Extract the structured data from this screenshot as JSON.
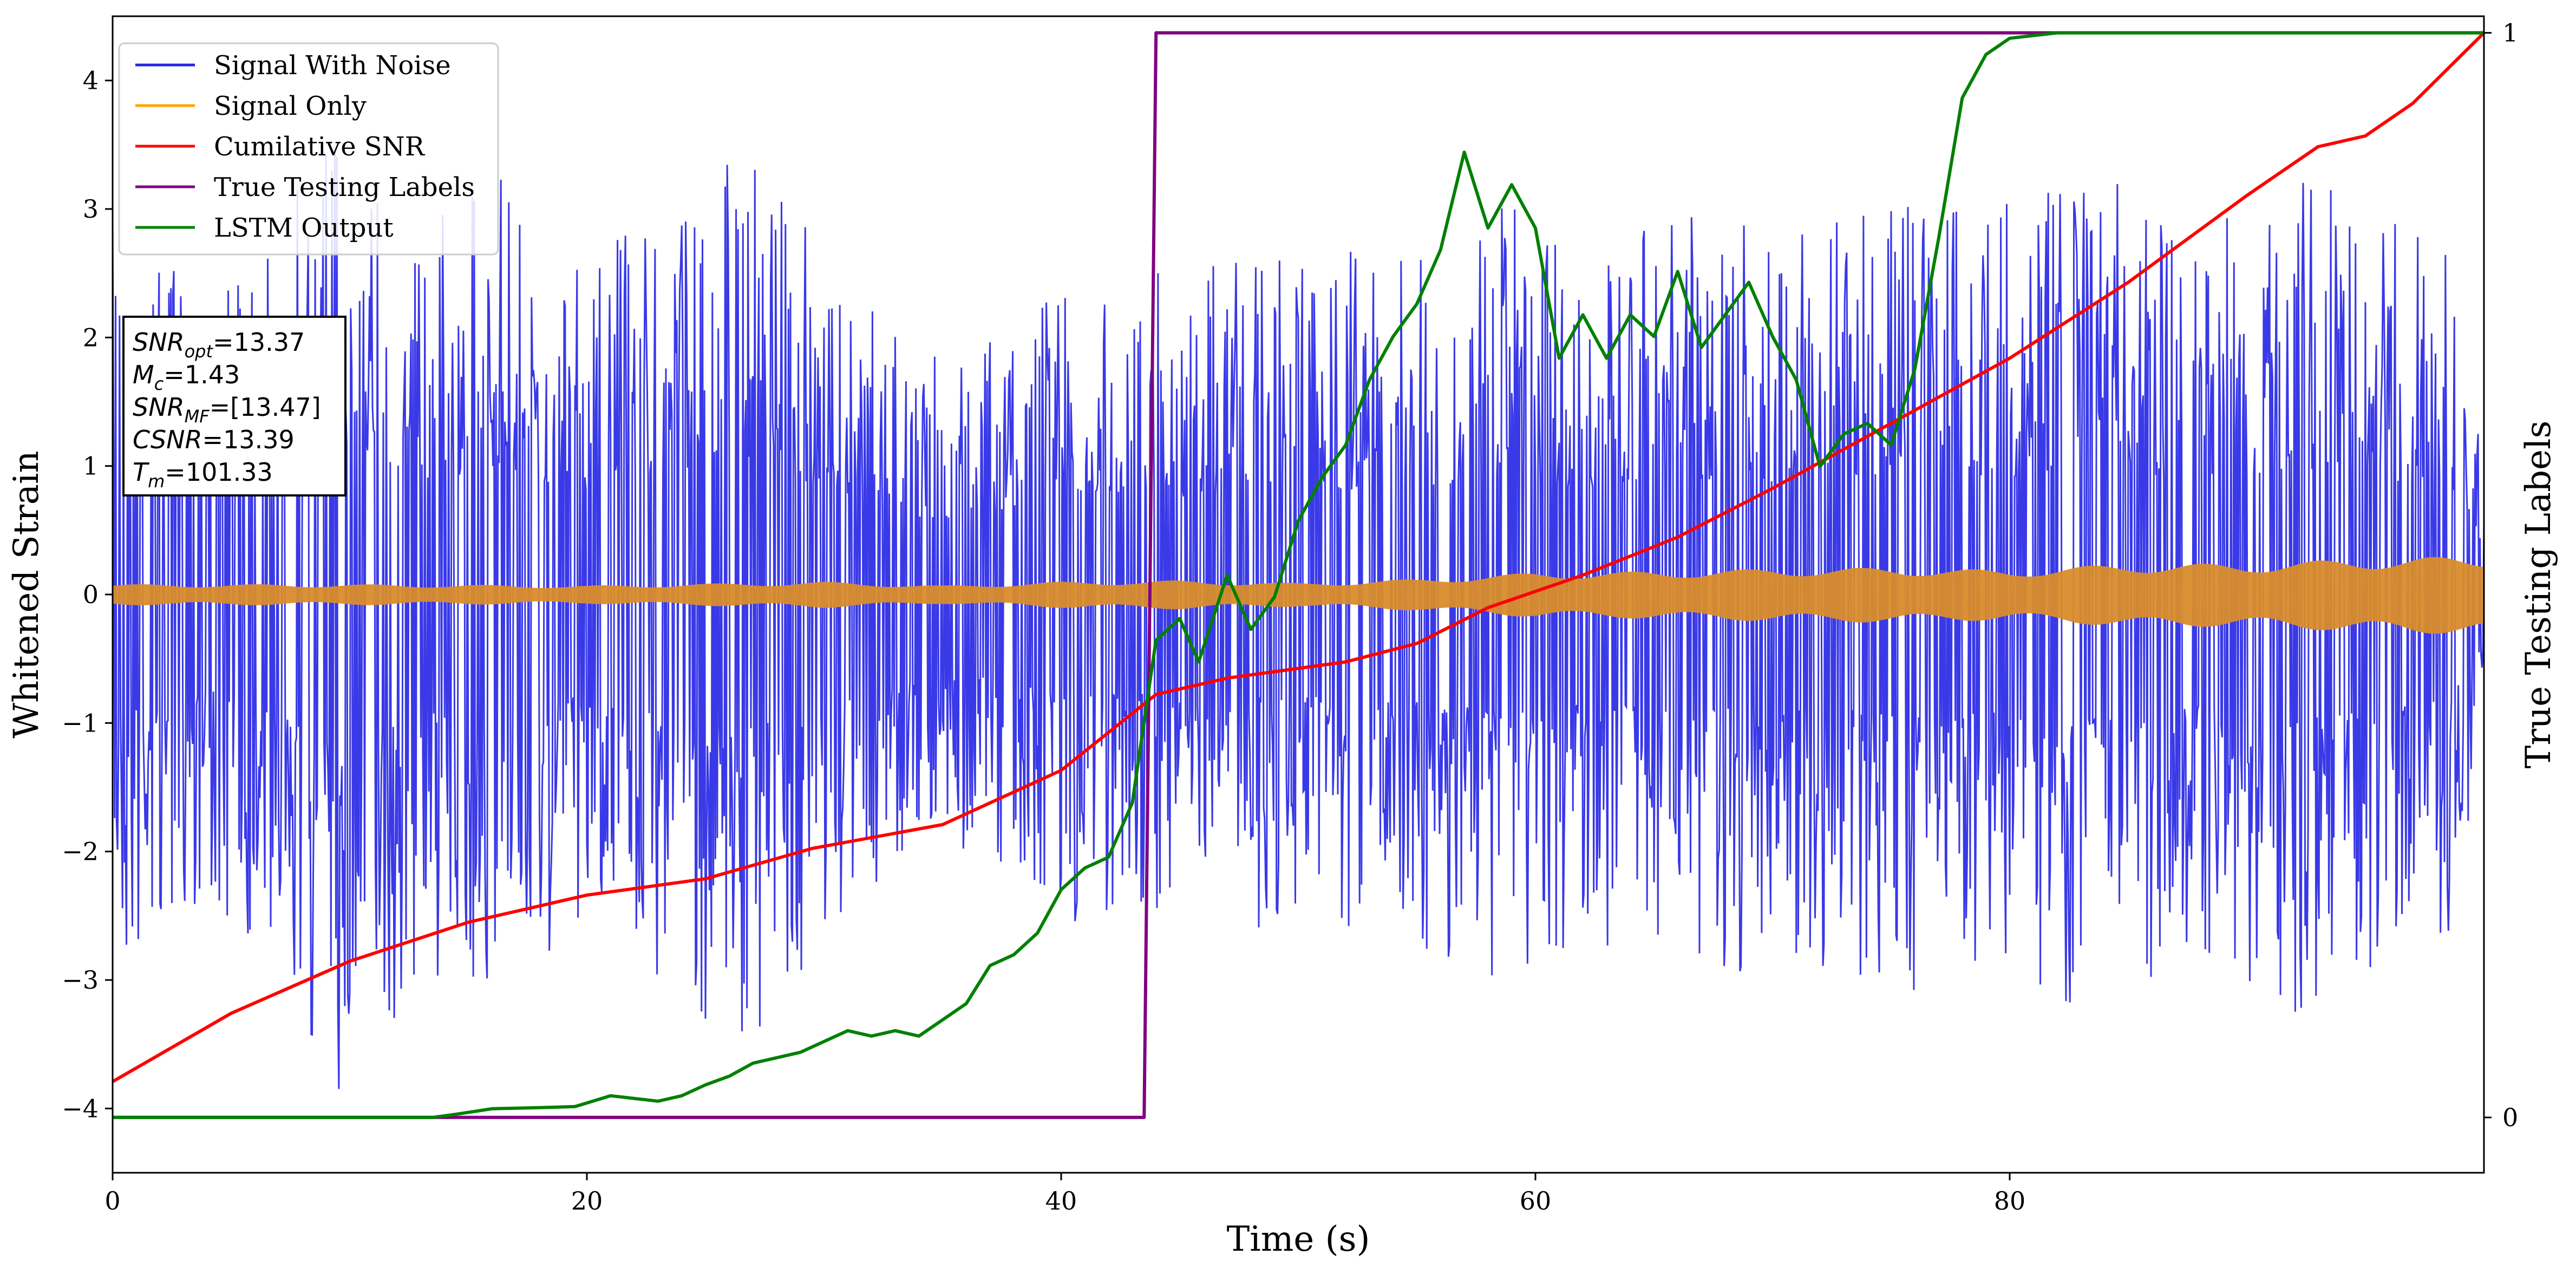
{
  "chart_data": {
    "type": "line",
    "xlabel": "Time (s)",
    "ylabel": "Whitened Strain",
    "y2label": "True Testing Labels",
    "xlim": [
      0,
      100
    ],
    "ylim": [
      -4.5,
      4.5
    ],
    "y2lim": [
      -0.051,
      1.0153
    ],
    "x_ticks": [
      0,
      20,
      40,
      60,
      80
    ],
    "y_ticks": [
      -4,
      -3,
      -2,
      -1,
      0,
      1,
      2,
      3,
      4
    ],
    "y2_ticks": [
      0,
      1
    ],
    "legend_placement": "upper-left",
    "series": [
      {
        "name": "Signal With Noise",
        "color": "#2424e6",
        "style": "noise",
        "points": [
          [
            0,
            3.0
          ],
          [
            3.5,
            2.3
          ],
          [
            6.2,
            2.6
          ],
          [
            9.5,
            3.8
          ],
          [
            13.5,
            2.8
          ],
          [
            16.3,
            3.2
          ],
          [
            19.5,
            2.5
          ],
          [
            21.6,
            2.7
          ],
          [
            26.5,
            3.4
          ],
          [
            31,
            2.4
          ],
          [
            34,
            1.8
          ],
          [
            37,
            2.0
          ],
          [
            40,
            2.5
          ],
          [
            44,
            2.4
          ],
          [
            49,
            2.5
          ],
          [
            54,
            2.6
          ],
          [
            59,
            2.9
          ],
          [
            62,
            2.6
          ],
          [
            66,
            2.9
          ],
          [
            71,
            2.7
          ],
          [
            76,
            3.0
          ],
          [
            80,
            2.9
          ],
          [
            84,
            3.1
          ],
          [
            88,
            2.7
          ],
          [
            92,
            3.1
          ],
          [
            95,
            2.9
          ],
          [
            98.5,
            2.6
          ],
          [
            100,
            1.2
          ]
        ]
      },
      {
        "name": "Signal Only",
        "color": "#ffa500",
        "style": "band",
        "points": [
          [
            0,
            0.08
          ],
          [
            10,
            0.08
          ],
          [
            20,
            0.07
          ],
          [
            30,
            0.1
          ],
          [
            35,
            0.07
          ],
          [
            40,
            0.1
          ],
          [
            45,
            0.11
          ],
          [
            50,
            0.09
          ],
          [
            55,
            0.12
          ],
          [
            60,
            0.17
          ],
          [
            65,
            0.18
          ],
          [
            70,
            0.2
          ],
          [
            75,
            0.21
          ],
          [
            80,
            0.19
          ],
          [
            85,
            0.24
          ],
          [
            90,
            0.24
          ],
          [
            95,
            0.28
          ],
          [
            100,
            0.3
          ]
        ]
      },
      {
        "name": "Cumilative SNR",
        "color": "#ff0000",
        "points": [
          [
            0,
            0.033
          ],
          [
            5,
            0.096
          ],
          [
            10,
            0.144
          ],
          [
            15,
            0.18
          ],
          [
            20,
            0.205
          ],
          [
            25,
            0.22
          ],
          [
            29.5,
            0.248
          ],
          [
            35,
            0.27
          ],
          [
            40,
            0.32
          ],
          [
            44,
            0.39
          ],
          [
            47,
            0.405
          ],
          [
            52,
            0.42
          ],
          [
            55,
            0.437
          ],
          [
            58,
            0.47
          ],
          [
            62,
            0.5
          ],
          [
            66,
            0.535
          ],
          [
            70,
            0.58
          ],
          [
            75,
            0.64
          ],
          [
            80,
            0.7
          ],
          [
            85,
            0.77
          ],
          [
            90,
            0.85
          ],
          [
            93,
            0.895
          ],
          [
            95,
            0.905
          ],
          [
            97,
            0.935
          ],
          [
            100,
            1.0
          ]
        ]
      },
      {
        "name": "True Testing Labels",
        "color": "#800080",
        "points": [
          [
            0,
            0
          ],
          [
            43.5,
            0
          ],
          [
            44.0,
            1.0
          ],
          [
            100,
            1.0
          ]
        ]
      },
      {
        "name": "LSTM Output",
        "color": "#008000",
        "points": [
          [
            0,
            0
          ],
          [
            13.5,
            0
          ],
          [
            14.5,
            0.003
          ],
          [
            16,
            0.008
          ],
          [
            18,
            0.009
          ],
          [
            19.5,
            0.01
          ],
          [
            21,
            0.02
          ],
          [
            23,
            0.015
          ],
          [
            24,
            0.02
          ],
          [
            25,
            0.03
          ],
          [
            26,
            0.038
          ],
          [
            27,
            0.05
          ],
          [
            29,
            0.06
          ],
          [
            30,
            0.07
          ],
          [
            31,
            0.08
          ],
          [
            32,
            0.075
          ],
          [
            33,
            0.08
          ],
          [
            34,
            0.075
          ],
          [
            35,
            0.09
          ],
          [
            36,
            0.105
          ],
          [
            37,
            0.14
          ],
          [
            38,
            0.15
          ],
          [
            39,
            0.17
          ],
          [
            40,
            0.21
          ],
          [
            41,
            0.23
          ],
          [
            42,
            0.24
          ],
          [
            43,
            0.29
          ],
          [
            44,
            0.44
          ],
          [
            45,
            0.46
          ],
          [
            45.8,
            0.42
          ],
          [
            47,
            0.5
          ],
          [
            48,
            0.45
          ],
          [
            49,
            0.48
          ],
          [
            50,
            0.55
          ],
          [
            51,
            0.59
          ],
          [
            52,
            0.62
          ],
          [
            53,
            0.68
          ],
          [
            54,
            0.72
          ],
          [
            55,
            0.75
          ],
          [
            56,
            0.8
          ],
          [
            57,
            0.89
          ],
          [
            58,
            0.82
          ],
          [
            59,
            0.86
          ],
          [
            60,
            0.82
          ],
          [
            61,
            0.7
          ],
          [
            62,
            0.74
          ],
          [
            63,
            0.7
          ],
          [
            64,
            0.74
          ],
          [
            65,
            0.72
          ],
          [
            66,
            0.78
          ],
          [
            67,
            0.71
          ],
          [
            68,
            0.74
          ],
          [
            69,
            0.77
          ],
          [
            70,
            0.72
          ],
          [
            71,
            0.68
          ],
          [
            72,
            0.6
          ],
          [
            73,
            0.63
          ],
          [
            74,
            0.64
          ],
          [
            75,
            0.62
          ],
          [
            76,
            0.69
          ],
          [
            77,
            0.81
          ],
          [
            78,
            0.94
          ],
          [
            79,
            0.98
          ],
          [
            80,
            0.995
          ],
          [
            82,
            1.0
          ],
          [
            100,
            1.0
          ]
        ]
      }
    ],
    "annotation_box": {
      "lines": [
        "SNR_opt=13.37",
        "M_c=1.43",
        "SNR_MF=[13.47]",
        "CSNR=13.39",
        "T_m=101.33"
      ]
    }
  },
  "stats": {
    "snr_opt": {
      "base": "SNR",
      "sub": "opt",
      "value": "=13.37"
    },
    "mc": {
      "base": "M",
      "sub": "c",
      "value": "=1.43"
    },
    "snr_mf": {
      "base": "SNR",
      "sub": "MF",
      "value": "=[13.47]"
    },
    "csnr": {
      "base": "CSNR",
      "sub": "",
      "value": "=13.39"
    },
    "tm": {
      "base": "T",
      "sub": "m",
      "value": "=101.33"
    }
  }
}
